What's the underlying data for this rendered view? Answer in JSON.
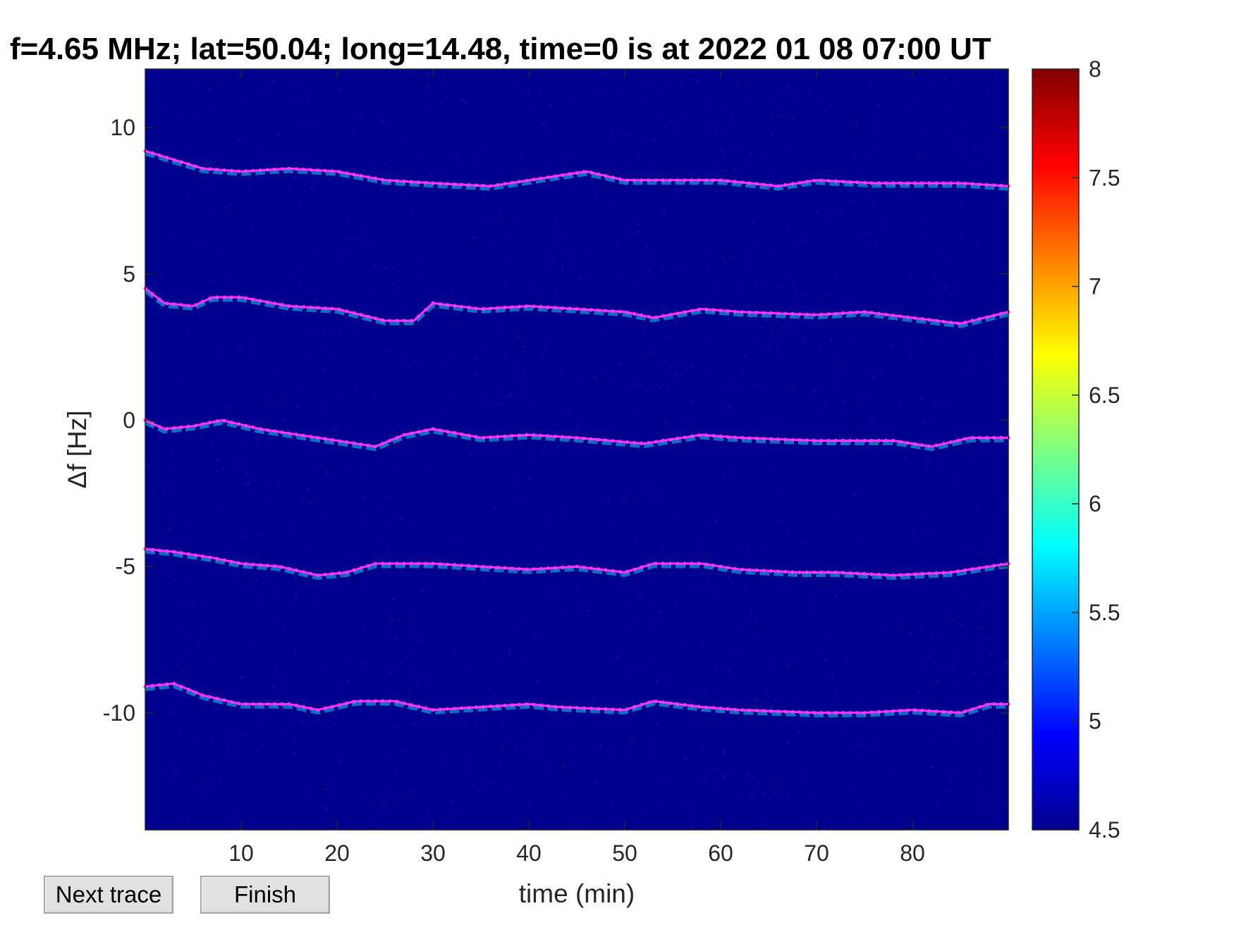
{
  "chart_data": {
    "type": "heatmap",
    "title": "f=4.65 MHz;  lat=50.04; long=14.48, time=0 is at 2022 01 08 07:00 UT",
    "xlabel": "time (min)",
    "ylabel": "Δf [Hz]",
    "xlim": [
      0,
      90
    ],
    "ylim": [
      -14,
      12
    ],
    "xticks": [
      10,
      20,
      30,
      40,
      50,
      60,
      70,
      80
    ],
    "yticks": [
      10,
      5,
      0,
      -5,
      -10
    ],
    "ytick_labels": [
      "10",
      "5",
      "0",
      "-5",
      "-10"
    ],
    "colorbar": {
      "range": [
        4.5,
        8
      ],
      "ticks": [
        8,
        7.5,
        7,
        6.5,
        6,
        5.5,
        5,
        4.5
      ],
      "tick_labels": [
        "8",
        "7.5",
        "7",
        "6.5",
        "6",
        "5.5",
        "5",
        "4.5"
      ],
      "colormap": "jet"
    },
    "background_color": "#00008f",
    "trace_color": "#ff33ff",
    "series": [
      {
        "x": [
          0,
          3,
          6,
          10,
          15,
          20,
          25,
          30,
          36,
          40,
          46,
          50,
          56,
          60,
          66,
          70,
          76,
          80,
          85,
          90
        ],
        "y": [
          9.2,
          8.9,
          8.6,
          8.5,
          8.6,
          8.5,
          8.2,
          8.1,
          8.0,
          8.2,
          8.5,
          8.2,
          8.2,
          8.2,
          8.0,
          8.2,
          8.1,
          8.1,
          8.1,
          8.0
        ]
      },
      {
        "x": [
          0,
          2,
          5,
          7,
          10,
          15,
          20,
          25,
          28,
          30,
          35,
          40,
          45,
          50,
          53,
          58,
          62,
          70,
          75,
          80,
          85,
          90
        ],
        "y": [
          4.5,
          4.0,
          3.9,
          4.2,
          4.2,
          3.9,
          3.8,
          3.4,
          3.4,
          4.0,
          3.8,
          3.9,
          3.8,
          3.7,
          3.5,
          3.8,
          3.7,
          3.6,
          3.7,
          3.5,
          3.3,
          3.7
        ]
      },
      {
        "x": [
          0,
          2,
          5,
          8,
          12,
          18,
          24,
          27,
          30,
          35,
          40,
          45,
          52,
          58,
          62,
          70,
          78,
          82,
          86,
          90
        ],
        "y": [
          0.0,
          -0.3,
          -0.2,
          0.0,
          -0.3,
          -0.6,
          -0.9,
          -0.5,
          -0.3,
          -0.6,
          -0.5,
          -0.6,
          -0.8,
          -0.5,
          -0.6,
          -0.7,
          -0.7,
          -0.9,
          -0.6,
          -0.6
        ]
      },
      {
        "x": [
          0,
          3,
          7,
          10,
          14,
          18,
          21,
          24,
          30,
          35,
          40,
          45,
          50,
          53,
          58,
          62,
          68,
          72,
          78,
          84,
          88,
          90
        ],
        "y": [
          -4.4,
          -4.5,
          -4.7,
          -4.9,
          -5.0,
          -5.3,
          -5.2,
          -4.9,
          -4.9,
          -5.0,
          -5.1,
          -5.0,
          -5.2,
          -4.9,
          -4.9,
          -5.1,
          -5.2,
          -5.2,
          -5.3,
          -5.2,
          -5.0,
          -4.9
        ]
      },
      {
        "x": [
          0,
          3,
          6,
          10,
          15,
          18,
          22,
          26,
          30,
          35,
          40,
          43,
          50,
          53,
          58,
          62,
          70,
          75,
          80,
          85,
          88,
          90
        ],
        "y": [
          -9.1,
          -9.0,
          -9.4,
          -9.7,
          -9.7,
          -9.9,
          -9.6,
          -9.6,
          -9.9,
          -9.8,
          -9.7,
          -9.8,
          -9.9,
          -9.6,
          -9.8,
          -9.9,
          -10.0,
          -10.0,
          -9.9,
          -10.0,
          -9.7,
          -9.7
        ]
      }
    ]
  },
  "buttons": {
    "next_trace": "Next trace",
    "finish": "Finish"
  }
}
